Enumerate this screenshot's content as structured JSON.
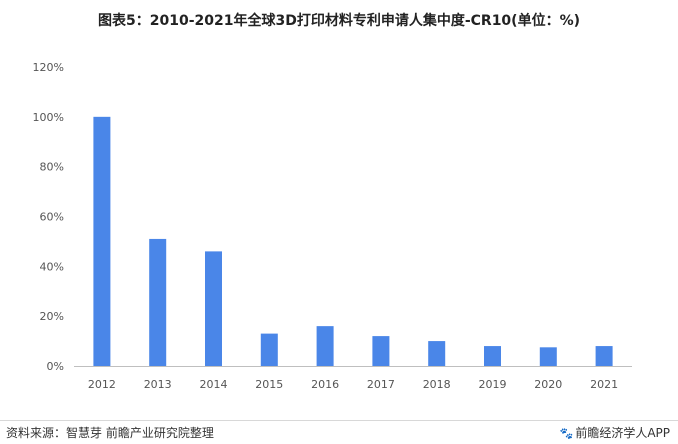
{
  "title": "图表5：2010-2021年全球3D打印材料专利申请人集中度-CR10(单位：%)",
  "footer": {
    "source": "资料来源：智慧芽 前瞻产业研究院整理",
    "brand": "前瞻经济学人APP",
    "brand_icon": "paw-icon"
  },
  "chart_data": {
    "type": "bar",
    "categories": [
      "2012",
      "2013",
      "2014",
      "2015",
      "2016",
      "2017",
      "2018",
      "2019",
      "2020",
      "2021"
    ],
    "values": [
      100,
      51,
      46,
      13,
      16,
      12,
      10,
      8,
      7.5,
      8
    ],
    "yticks": [
      "0%",
      "20%",
      "40%",
      "60%",
      "80%",
      "100%",
      "120%"
    ],
    "ylim": [
      0,
      120
    ],
    "unit": "%",
    "bar_color": "#4a86e8",
    "grid": false,
    "legend": "none"
  }
}
